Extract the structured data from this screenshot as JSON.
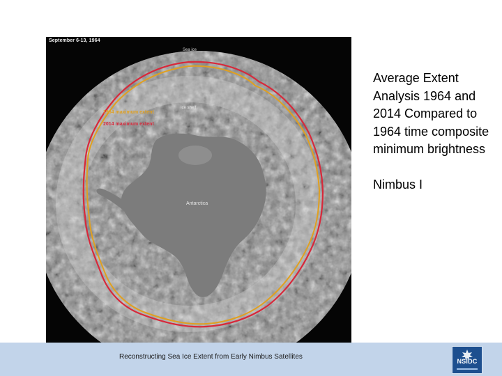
{
  "slide": {
    "map": {
      "date_label": "September 6-13, 1964",
      "label_sea": "Sea ice",
      "label_shelf": "Ice shelf",
      "legend_1964": "1964 maximum extent",
      "legend_2014": "2014 maximum extent",
      "label_continent": "Antarctica",
      "colors": {
        "line_1964": "#e0a020",
        "line_2014": "#d8283a",
        "continent": "#7c7c7c"
      }
    },
    "caption": [
      "Average Extent Analysis 1964 and 2014 Compared to 1964 time composite minimum brightness",
      "Nimbus I"
    ],
    "footer": {
      "text": "Reconstructing Sea Ice Extent from Early Nimbus Satellites",
      "logo_text": "NSIDC",
      "background": "#c2d4ea"
    }
  }
}
